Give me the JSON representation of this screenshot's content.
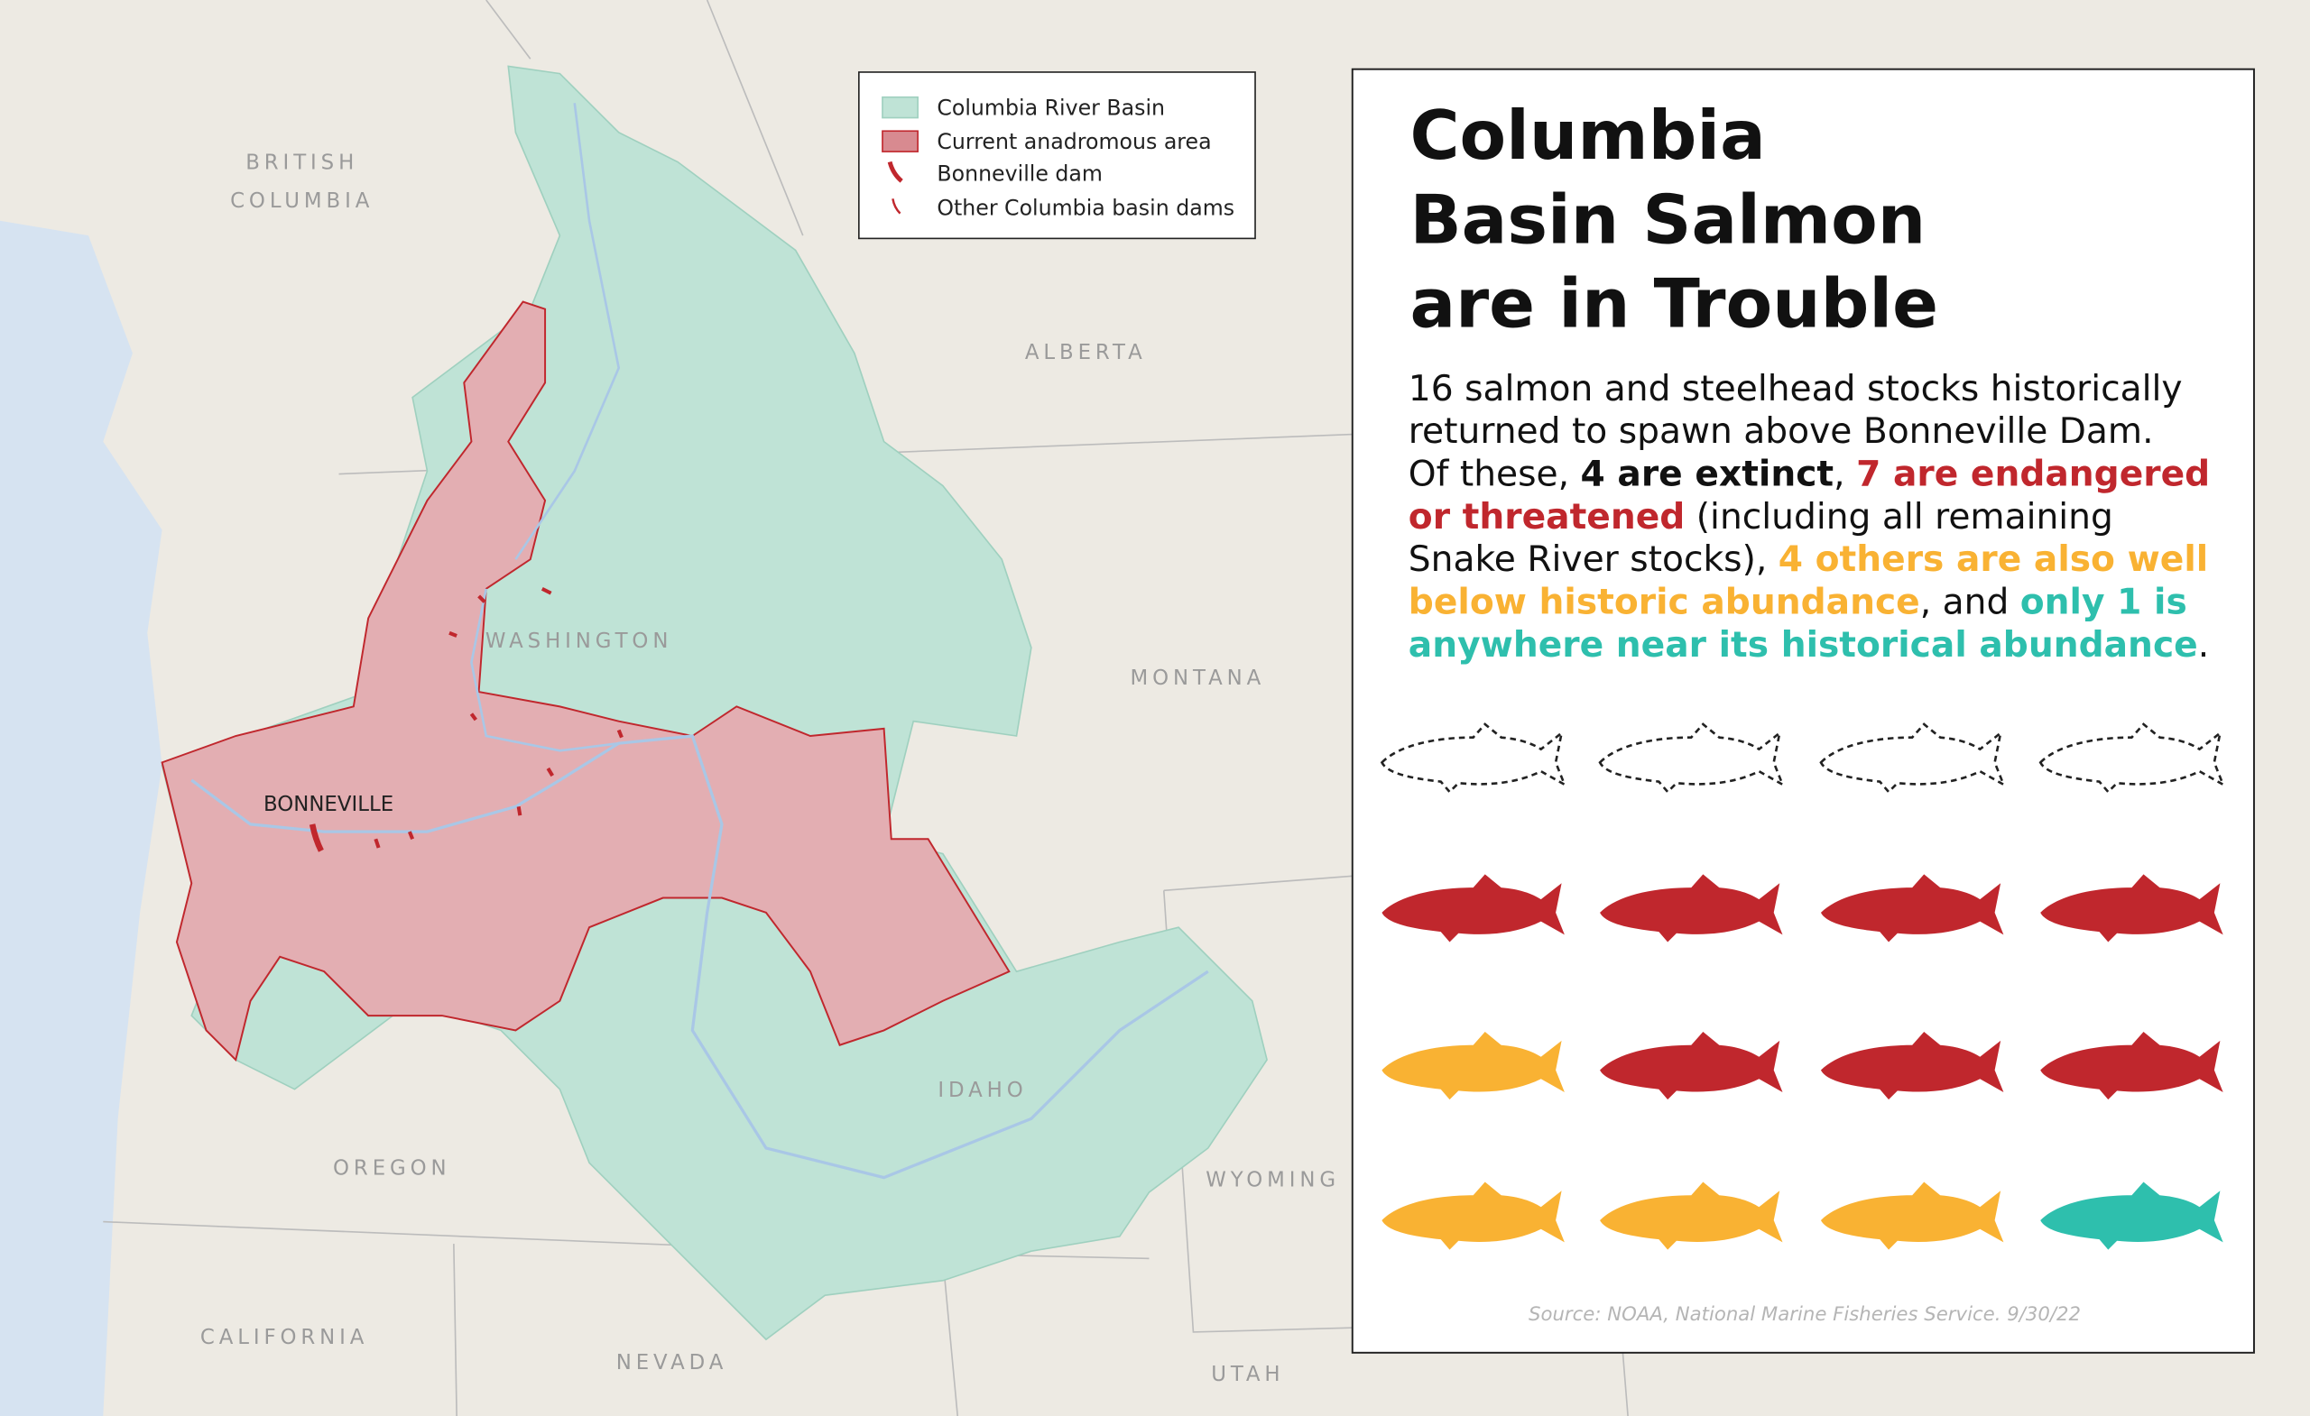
{
  "legend": [
    "Columbia River Basin",
    "Current anadromous area",
    "Bonneville dam",
    "Other Columbia basin dams"
  ],
  "places": {
    "british": "BRITISH",
    "columbia": "COLUMBIA",
    "alberta": "ALBERTA",
    "washington": "WASHINGTON",
    "montana": "MONTANA",
    "idaho": "IDAHO",
    "oregon": "OREGON",
    "wyoming": "WYOMING",
    "california": "CALIFORNIA",
    "nevada": "NEVADA",
    "utah": "UTAH",
    "bonneville": "BONNEVILLE"
  },
  "panel": {
    "title": [
      "Columbia",
      "Basin Salmon",
      "are in Trouble"
    ],
    "body": [
      [
        "16 salmon and steelhead stocks historically"
      ],
      [
        "returned to spawn above Bonneville Dam."
      ],
      [
        "Of these, ",
        "4 are extinct",
        ", ",
        "7 are endangered"
      ],
      [
        "or threatened",
        " (including all remaining"
      ],
      [
        "Snake River stocks), ",
        "4 others are also well"
      ],
      [
        "below historic abundance",
        ", and ",
        "only 1 is"
      ],
      [
        "anywhere near its historical abundance",
        "."
      ]
    ],
    "source": "Source: NOAA, National Marine Fisheries Service. 9/30/22"
  }
}
